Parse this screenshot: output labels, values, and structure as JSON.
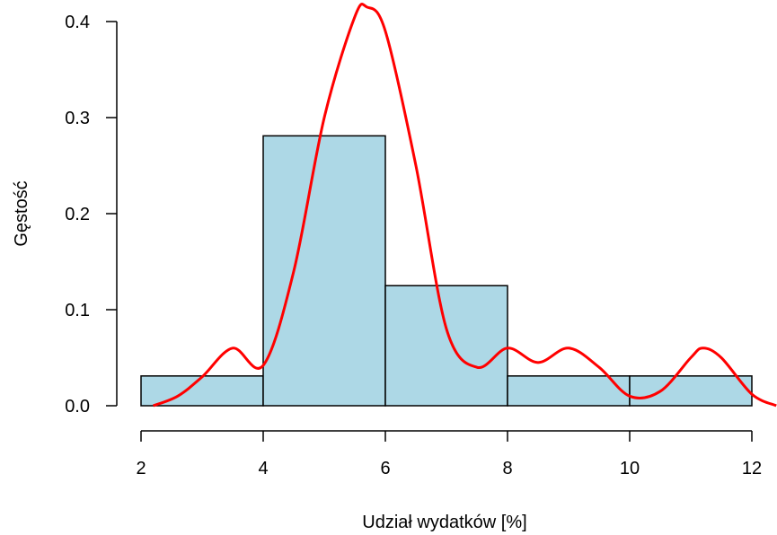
{
  "chart_data": {
    "type": "bar",
    "subtype": "histogram with density curve",
    "title": "",
    "xlabel": "Udział wydatków [%]",
    "ylabel": "Gęstość",
    "xlim": [
      2,
      12
    ],
    "ylim": [
      0,
      0.4
    ],
    "x_ticks": [
      "2",
      "4",
      "6",
      "8",
      "10",
      "12"
    ],
    "y_ticks": [
      "0.0",
      "0.1",
      "0.2",
      "0.3",
      "0.4"
    ],
    "bins": [
      {
        "from": 2,
        "to": 4,
        "value": 0.031
      },
      {
        "from": 4,
        "to": 6,
        "value": 0.281
      },
      {
        "from": 6,
        "to": 8,
        "value": 0.125
      },
      {
        "from": 8,
        "to": 10,
        "value": 0.031
      },
      {
        "from": 10,
        "to": 12,
        "value": 0.031
      }
    ],
    "density_curve": {
      "x": [
        2.2,
        2.6,
        3.0,
        3.5,
        4.0,
        4.5,
        5.0,
        5.5,
        5.7,
        6.0,
        6.5,
        7.0,
        7.5,
        8.0,
        8.5,
        9.0,
        9.5,
        10.0,
        10.5,
        11.0,
        11.2,
        11.5,
        12.0,
        12.4
      ],
      "y": [
        0.0,
        0.01,
        0.03,
        0.06,
        0.042,
        0.14,
        0.3,
        0.405,
        0.415,
        0.39,
        0.25,
        0.08,
        0.04,
        0.06,
        0.045,
        0.06,
        0.04,
        0.01,
        0.015,
        0.05,
        0.06,
        0.05,
        0.012,
        0.0
      ]
    },
    "grid": false,
    "legend": "none",
    "colors": {
      "bar_fill": "#add8e6",
      "bar_stroke": "#000000",
      "curve": "#ff0000",
      "axis": "#000000"
    }
  }
}
